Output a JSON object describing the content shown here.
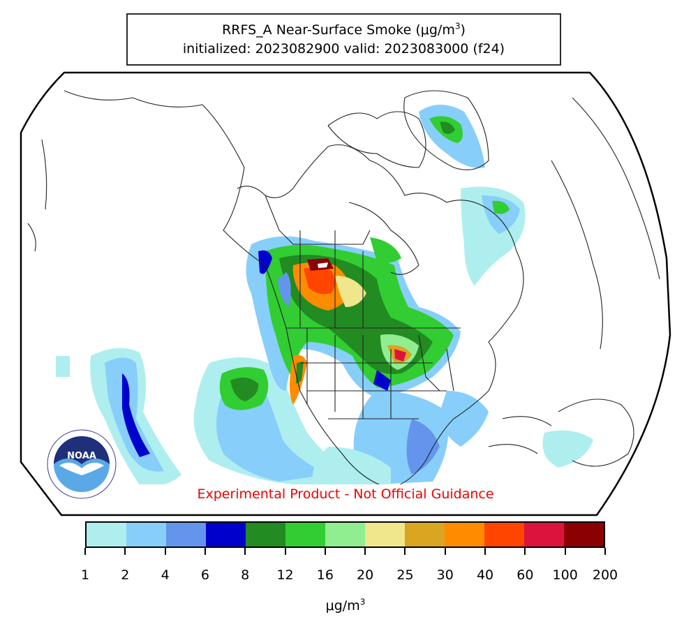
{
  "title": {
    "line1_prefix": "RRFS_A Near-Surface Smoke (μg/m",
    "line1_sup": "3",
    "line1_suffix": ")",
    "line2": "initialized: 2023082900 valid: 2023083000 (f24)"
  },
  "disclaimer": "Experimental Product - Not Official Guidance",
  "logo": {
    "agency_text": "NOAA",
    "icon": "noaa-logo-icon"
  },
  "colorbar": {
    "unit_prefix": "μg/m",
    "unit_sup": "3",
    "bounds": [
      "1",
      "2",
      "4",
      "6",
      "8",
      "12",
      "16",
      "20",
      "25",
      "30",
      "40",
      "60",
      "100",
      "200"
    ],
    "colors": [
      "#aeeeee",
      "#87cefa",
      "#6495ed",
      "#0000cd",
      "#228b22",
      "#32cd32",
      "#90ee90",
      "#f0e68c",
      "#daa520",
      "#ff8c00",
      "#ff4500",
      "#dc143c",
      "#8b0000"
    ]
  }
}
